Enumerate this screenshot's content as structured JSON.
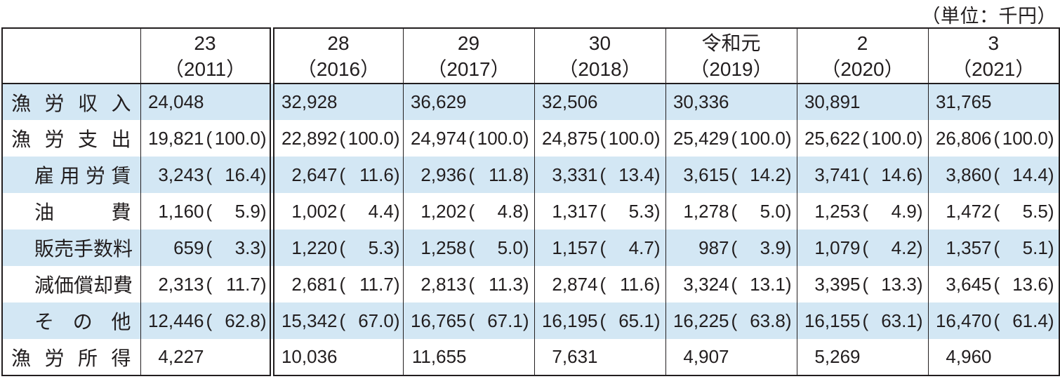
{
  "unit_label": "（単位：千円）",
  "format": {
    "paren_open": "(",
    "paren_close": ")"
  },
  "colors": {
    "stripe": "#d3e7f4",
    "border": "#221e1f",
    "text": "#221e1f",
    "background": "#ffffff"
  },
  "table": {
    "corner_label": "",
    "columns": [
      {
        "era": "23",
        "year": "（2011）"
      },
      {
        "era": "28",
        "year": "（2016）"
      },
      {
        "era": "29",
        "year": "（2017）"
      },
      {
        "era": "30",
        "year": "（2018）"
      },
      {
        "era": "令和元",
        "year": "（2019）"
      },
      {
        "era": "2",
        "year": "（2020）"
      },
      {
        "era": "3",
        "year": "（2021）"
      }
    ],
    "rows": [
      {
        "label": "漁労収入",
        "sub": false,
        "cells": [
          {
            "num": "24,048",
            "pct": ""
          },
          {
            "num": "32,928",
            "pct": ""
          },
          {
            "num": "36,629",
            "pct": ""
          },
          {
            "num": "32,506",
            "pct": ""
          },
          {
            "num": "30,336",
            "pct": ""
          },
          {
            "num": "30,891",
            "pct": ""
          },
          {
            "num": "31,765",
            "pct": ""
          }
        ]
      },
      {
        "label": "漁労支出",
        "sub": false,
        "cells": [
          {
            "num": "19,821",
            "pct": "100.0"
          },
          {
            "num": "22,892",
            "pct": "100.0"
          },
          {
            "num": "24,974",
            "pct": "100.0"
          },
          {
            "num": "24,875",
            "pct": "100.0"
          },
          {
            "num": "25,429",
            "pct": "100.0"
          },
          {
            "num": "25,622",
            "pct": "100.0"
          },
          {
            "num": "26,806",
            "pct": "100.0"
          }
        ]
      },
      {
        "label": "雇用労賃",
        "sub": true,
        "cells": [
          {
            "num": "3,243",
            "pct": "16.4"
          },
          {
            "num": "2,647",
            "pct": "11.6"
          },
          {
            "num": "2,936",
            "pct": "11.8"
          },
          {
            "num": "3,331",
            "pct": "13.4"
          },
          {
            "num": "3,615",
            "pct": "14.2"
          },
          {
            "num": "3,741",
            "pct": "14.6"
          },
          {
            "num": "3,860",
            "pct": "14.4"
          }
        ]
      },
      {
        "label": "油費",
        "sub": true,
        "cells": [
          {
            "num": "1,160",
            "pct": "5.9"
          },
          {
            "num": "1,002",
            "pct": "4.4"
          },
          {
            "num": "1,202",
            "pct": "4.8"
          },
          {
            "num": "1,317",
            "pct": "5.3"
          },
          {
            "num": "1,278",
            "pct": "5.0"
          },
          {
            "num": "1,253",
            "pct": "4.9"
          },
          {
            "num": "1,472",
            "pct": "5.5"
          }
        ]
      },
      {
        "label": "販売手数料",
        "sub": true,
        "cells": [
          {
            "num": "659",
            "pct": "3.3"
          },
          {
            "num": "1,220",
            "pct": "5.3"
          },
          {
            "num": "1,258",
            "pct": "5.0"
          },
          {
            "num": "1,157",
            "pct": "4.7"
          },
          {
            "num": "987",
            "pct": "3.9"
          },
          {
            "num": "1,079",
            "pct": "4.2"
          },
          {
            "num": "1,357",
            "pct": "5.1"
          }
        ]
      },
      {
        "label": "減価償却費",
        "sub": true,
        "cells": [
          {
            "num": "2,313",
            "pct": "11.7"
          },
          {
            "num": "2,681",
            "pct": "11.7"
          },
          {
            "num": "2,813",
            "pct": "11.3"
          },
          {
            "num": "2,874",
            "pct": "11.6"
          },
          {
            "num": "3,324",
            "pct": "13.1"
          },
          {
            "num": "3,395",
            "pct": "13.3"
          },
          {
            "num": "3,645",
            "pct": "13.6"
          }
        ]
      },
      {
        "label": "その他",
        "sub": true,
        "cells": [
          {
            "num": "12,446",
            "pct": "62.8"
          },
          {
            "num": "15,342",
            "pct": "67.0"
          },
          {
            "num": "16,765",
            "pct": "67.1"
          },
          {
            "num": "16,195",
            "pct": "65.1"
          },
          {
            "num": "16,225",
            "pct": "63.8"
          },
          {
            "num": "16,155",
            "pct": "63.1"
          },
          {
            "num": "16,470",
            "pct": "61.4"
          }
        ]
      },
      {
        "label": "漁労所得",
        "sub": false,
        "cells": [
          {
            "num": "4,227",
            "pct": ""
          },
          {
            "num": "10,036",
            "pct": ""
          },
          {
            "num": "11,655",
            "pct": ""
          },
          {
            "num": "7,631",
            "pct": ""
          },
          {
            "num": "4,907",
            "pct": ""
          },
          {
            "num": "5,269",
            "pct": ""
          },
          {
            "num": "4,960",
            "pct": ""
          }
        ]
      }
    ]
  }
}
